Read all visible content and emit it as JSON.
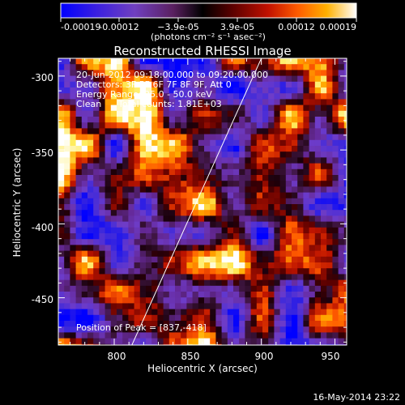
{
  "colorbar": {
    "tick_labels": [
      "-0.00019",
      "-0.00012",
      "−3.9e-05",
      "3.9e-05",
      "0.00012",
      "0.00019"
    ],
    "units": "(photons cm⁻² s⁻¹ asec⁻²)",
    "colors": [
      "#0000ff",
      "#6a2fcf",
      "#7a2a8a",
      "#3a0f1a",
      "#000000",
      "#5a0000",
      "#c01000",
      "#ff5a00",
      "#ffa000",
      "#ffee60",
      "#ffffff"
    ]
  },
  "image": {
    "title": "Reconstructed RHESSI Image",
    "time_range": "20-Jun-2012 09:18:00.000 to 09:20:00.000",
    "detectors": "Detectors: 3F 5F 6F 7F 8F 9F, Att 0",
    "energy_range": "Energy Range: 25.0 - 50.0 keV",
    "algorithm": "Clean",
    "total_counts": "Total counts: 1.81E+03",
    "peak": "Position of Peak = [837,-418]",
    "xlabel": "Heliocentric X (arcsec)",
    "ylabel": "Heliocentric Y (arcsec)",
    "x_ticks": [
      "800",
      "850",
      "900",
      "950"
    ],
    "y_ticks": [
      "-300",
      "-350",
      "-400",
      "-450"
    ],
    "xlim": [
      762,
      958
    ],
    "ylim": [
      -482,
      -288
    ],
    "limb_line": [
      [
        812,
        -482
      ],
      [
        900,
        -288
      ]
    ]
  },
  "footer": {
    "timestamp": "16-May-2014 23:22"
  }
}
